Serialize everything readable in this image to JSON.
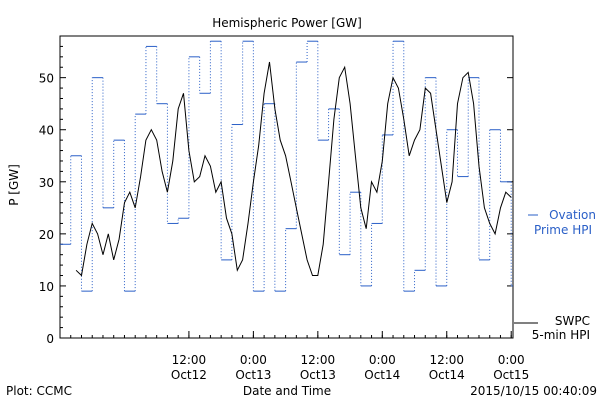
{
  "chart_data": {
    "type": "line",
    "title": "Hemispheric Power [GW]",
    "xlabel": "Date and Time",
    "ylabel": "P [GW]",
    "ylim": [
      0,
      58
    ],
    "yticks": [
      0,
      10,
      20,
      30,
      40,
      50
    ],
    "xlim": [
      "2015-10-11T12:00",
      "2015-10-15T00:20"
    ],
    "xticks": [
      {
        "time": "2015-10-12T12:00",
        "line1": "12:00",
        "line2": "Oct12"
      },
      {
        "time": "2015-10-13T00:00",
        "line1": "0:00",
        "line2": "Oct13"
      },
      {
        "time": "2015-10-13T12:00",
        "line1": "12:00",
        "line2": "Oct13"
      },
      {
        "time": "2015-10-14T00:00",
        "line1": "0:00",
        "line2": "Oct14"
      },
      {
        "time": "2015-10-14T12:00",
        "line1": "12:00",
        "line2": "Oct14"
      },
      {
        "time": "2015-10-15T00:00",
        "line1": "0:00",
        "line2": "Oct15"
      }
    ],
    "grid": false,
    "series": [
      {
        "name": "SWPC 5-min HPI",
        "label_line1": "SWPC",
        "label_line2": "5-min HPI",
        "color": "#000000",
        "style": "solid",
        "x": [
          "2015-10-11T15:00",
          "2015-10-11T16:00",
          "2015-10-11T17:00",
          "2015-10-11T18:00",
          "2015-10-11T19:00",
          "2015-10-11T20:00",
          "2015-10-11T21:00",
          "2015-10-11T22:00",
          "2015-10-11T23:00",
          "2015-10-12T00:00",
          "2015-10-12T01:00",
          "2015-10-12T02:00",
          "2015-10-12T03:00",
          "2015-10-12T04:00",
          "2015-10-12T05:00",
          "2015-10-12T06:00",
          "2015-10-12T07:00",
          "2015-10-12T08:00",
          "2015-10-12T09:00",
          "2015-10-12T10:00",
          "2015-10-12T11:00",
          "2015-10-12T12:00",
          "2015-10-12T13:00",
          "2015-10-12T14:00",
          "2015-10-12T15:00",
          "2015-10-12T16:00",
          "2015-10-12T17:00",
          "2015-10-12T18:00",
          "2015-10-12T19:00",
          "2015-10-12T20:00",
          "2015-10-12T21:00",
          "2015-10-12T22:00",
          "2015-10-12T23:00",
          "2015-10-13T00:00",
          "2015-10-13T01:00",
          "2015-10-13T02:00",
          "2015-10-13T03:00",
          "2015-10-13T04:00",
          "2015-10-13T05:00",
          "2015-10-13T06:00",
          "2015-10-13T07:00",
          "2015-10-13T08:00",
          "2015-10-13T09:00",
          "2015-10-13T10:00",
          "2015-10-13T11:00",
          "2015-10-13T12:00",
          "2015-10-13T13:00",
          "2015-10-13T14:00",
          "2015-10-13T15:00",
          "2015-10-13T16:00",
          "2015-10-13T17:00",
          "2015-10-13T18:00",
          "2015-10-13T19:00",
          "2015-10-13T20:00",
          "2015-10-13T21:00",
          "2015-10-13T22:00",
          "2015-10-13T23:00",
          "2015-10-14T00:00",
          "2015-10-14T01:00",
          "2015-10-14T02:00",
          "2015-10-14T03:00",
          "2015-10-14T04:00",
          "2015-10-14T05:00",
          "2015-10-14T06:00",
          "2015-10-14T07:00",
          "2015-10-14T08:00",
          "2015-10-14T09:00",
          "2015-10-14T10:00",
          "2015-10-14T11:00",
          "2015-10-14T12:00",
          "2015-10-14T13:00",
          "2015-10-14T14:00",
          "2015-10-14T15:00",
          "2015-10-14T16:00",
          "2015-10-14T17:00",
          "2015-10-14T18:00",
          "2015-10-14T19:00",
          "2015-10-14T20:00",
          "2015-10-14T21:00",
          "2015-10-14T22:00",
          "2015-10-14T23:00",
          "2015-10-15T00:00"
        ],
        "y": [
          13,
          12,
          18,
          22,
          20,
          16,
          20,
          15,
          19,
          26,
          28,
          25,
          31,
          38,
          40,
          38,
          32,
          28,
          34,
          44,
          47,
          36,
          30,
          31,
          35,
          33,
          28,
          30,
          23,
          20,
          13,
          15,
          22,
          30,
          37,
          47,
          53,
          44,
          38,
          35,
          30,
          25,
          20,
          15,
          12,
          12,
          18,
          30,
          42,
          50,
          52,
          45,
          35,
          25,
          21,
          30,
          28,
          34,
          45,
          50,
          48,
          42,
          35,
          38,
          40,
          48,
          47,
          40,
          33,
          26,
          30,
          45,
          50,
          51,
          45,
          33,
          25,
          22,
          20,
          25,
          28,
          27
        ]
      },
      {
        "name": "Ovation Prime HPI",
        "label_line1": "Ovation",
        "label_line2": "Prime HPI",
        "color": "#2a5fc7",
        "style": "dotted-step",
        "x": [
          "2015-10-11T12:00",
          "2015-10-11T14:00",
          "2015-10-11T16:00",
          "2015-10-11T18:00",
          "2015-10-11T20:00",
          "2015-10-11T22:00",
          "2015-10-12T00:00",
          "2015-10-12T02:00",
          "2015-10-12T04:00",
          "2015-10-12T06:00",
          "2015-10-12T08:00",
          "2015-10-12T10:00",
          "2015-10-12T12:00",
          "2015-10-12T14:00",
          "2015-10-12T16:00",
          "2015-10-12T18:00",
          "2015-10-12T20:00",
          "2015-10-12T22:00",
          "2015-10-13T00:00",
          "2015-10-13T02:00",
          "2015-10-13T04:00",
          "2015-10-13T06:00",
          "2015-10-13T08:00",
          "2015-10-13T10:00",
          "2015-10-13T12:00",
          "2015-10-13T14:00",
          "2015-10-13T16:00",
          "2015-10-13T18:00",
          "2015-10-13T20:00",
          "2015-10-13T22:00",
          "2015-10-14T00:00",
          "2015-10-14T02:00",
          "2015-10-14T04:00",
          "2015-10-14T06:00",
          "2015-10-14T08:00",
          "2015-10-14T10:00",
          "2015-10-14T12:00",
          "2015-10-14T14:00",
          "2015-10-14T16:00",
          "2015-10-14T18:00",
          "2015-10-14T20:00",
          "2015-10-14T22:00",
          "2015-10-15T00:00"
        ],
        "y": [
          18,
          35,
          9,
          50,
          25,
          38,
          9,
          43,
          56,
          45,
          22,
          23,
          54,
          47,
          57,
          15,
          41,
          57,
          9,
          45,
          9,
          21,
          53,
          57,
          38,
          44,
          16,
          28,
          10,
          22,
          39,
          57,
          9,
          13,
          50,
          10,
          40,
          31,
          50,
          15,
          40,
          30,
          10
        ]
      }
    ]
  },
  "footer": {
    "plot_credit": "Plot: CCMC",
    "timestamp": "2015/10/15 00:40:09"
  }
}
